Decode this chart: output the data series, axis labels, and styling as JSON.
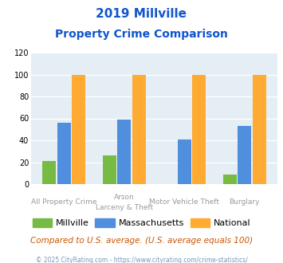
{
  "title_line1": "2019 Millville",
  "title_line2": "Property Crime Comparison",
  "xlabel_top": [
    "",
    "Arson",
    "Motor Vehicle Theft",
    ""
  ],
  "xlabel_bottom": [
    "All Property Crime",
    "Larceny & Theft",
    "",
    "Burglary"
  ],
  "millville": [
    21,
    26,
    0,
    9
  ],
  "massachusetts": [
    56,
    59,
    41,
    53
  ],
  "national": [
    100,
    100,
    100,
    100
  ],
  "colors": {
    "millville": "#77bb44",
    "massachusetts": "#4f8fdd",
    "national": "#ffaa33"
  },
  "ylim": [
    0,
    120
  ],
  "yticks": [
    0,
    20,
    40,
    60,
    80,
    100,
    120
  ],
  "bg_color": "#e4eef4",
  "title_color": "#1155cc",
  "note_text": "Compared to U.S. average. (U.S. average equals 100)",
  "footer_text": "© 2025 CityRating.com - https://www.cityrating.com/crime-statistics/",
  "note_color": "#cc5500",
  "footer_color": "#7799bb"
}
